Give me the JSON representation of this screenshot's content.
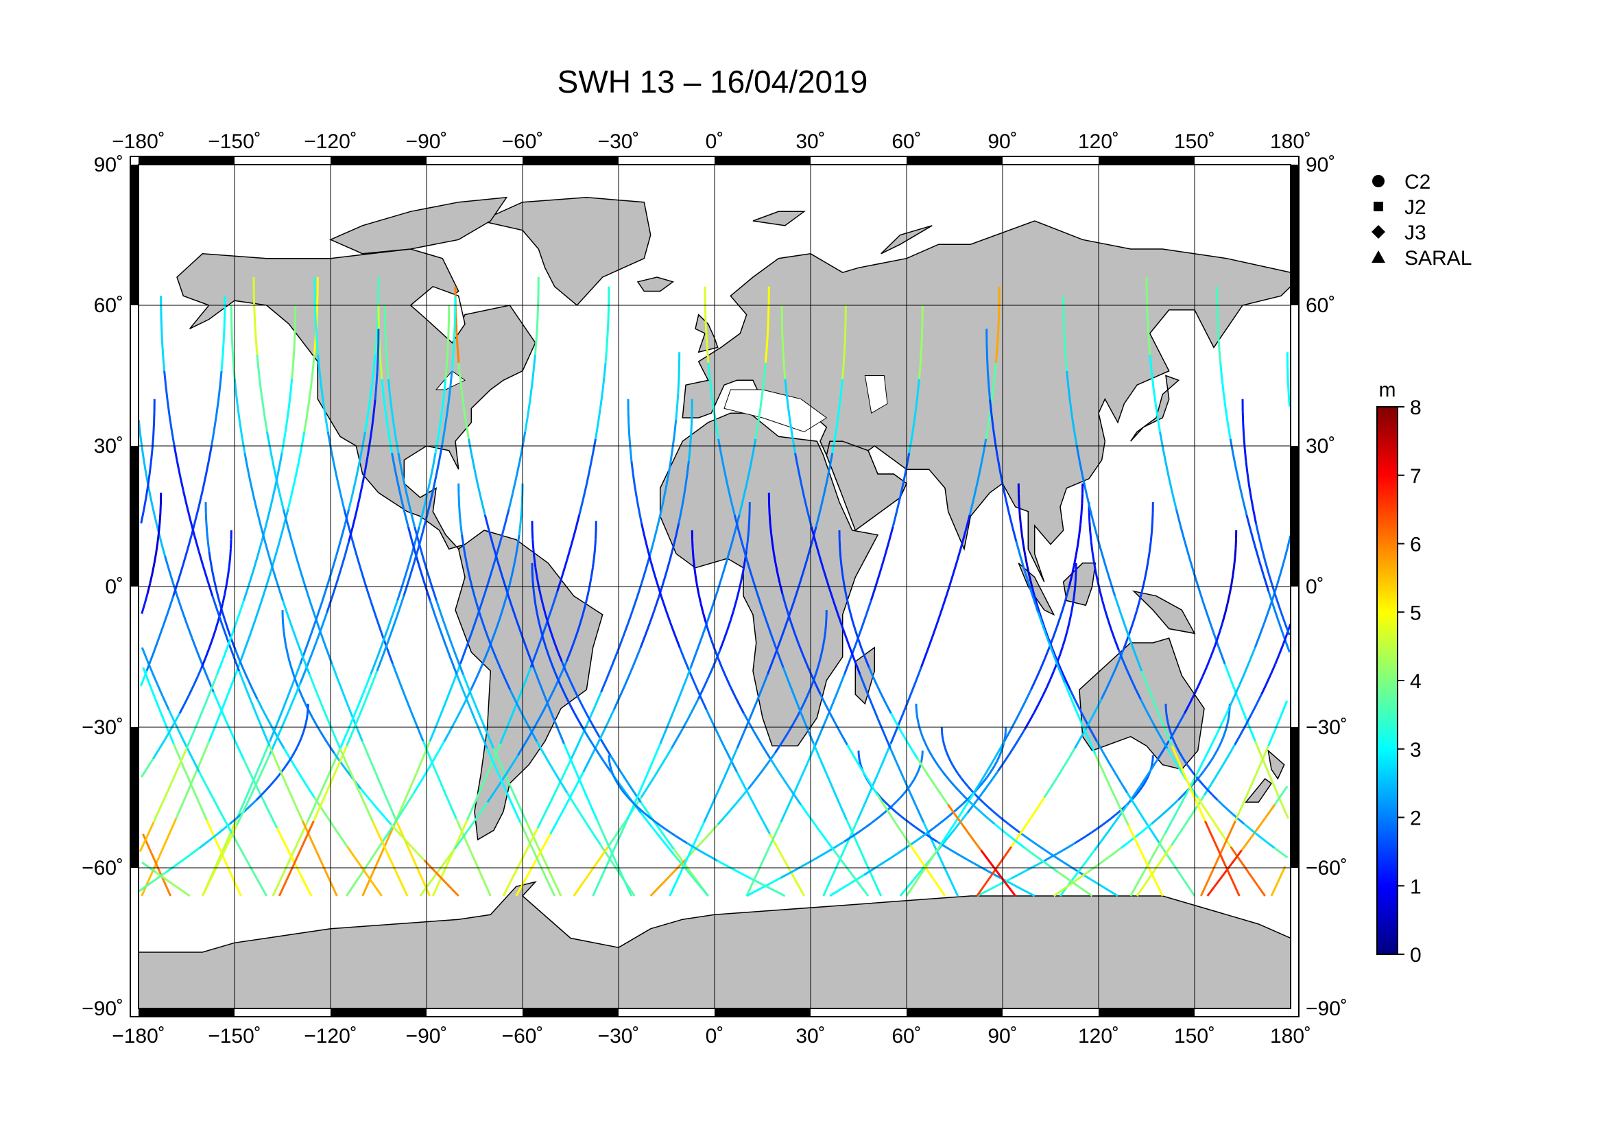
{
  "title": "SWH 13 – 16/04/2019",
  "map": {
    "projection": "equirectangular",
    "lon_range": [
      -180,
      180
    ],
    "lat_range": [
      -90,
      90
    ],
    "lon_ticks": [
      -180,
      -150,
      -120,
      -90,
      -60,
      -30,
      0,
      30,
      60,
      90,
      120,
      150,
      180
    ],
    "lat_ticks": [
      90,
      60,
      30,
      0,
      -30,
      -60,
      -90
    ],
    "lon_tick_labels": [
      "−180˚",
      "−150˚",
      "−120˚",
      "−90˚",
      "−60˚",
      "−30˚",
      "0˚",
      "30˚",
      "60˚",
      "90˚",
      "120˚",
      "150˚",
      "180˚"
    ],
    "lat_tick_labels": [
      "90˚",
      "60˚",
      "30˚",
      "0˚",
      "−30˚",
      "−60˚",
      "−90˚"
    ],
    "grid": true,
    "land_color": "#bebebe",
    "ocean_color": "#ffffff"
  },
  "legend": {
    "placement": "top-right",
    "items": [
      {
        "label": "C2",
        "symbol": "circle"
      },
      {
        "label": "J2",
        "symbol": "square"
      },
      {
        "label": "J3",
        "symbol": "diamond"
      },
      {
        "label": "SARAL",
        "symbol": "triangle"
      }
    ]
  },
  "colorbar": {
    "unit": "m",
    "min": 0,
    "max": 8,
    "ticks": [
      8,
      7,
      6,
      5,
      4,
      3,
      2,
      1,
      0
    ],
    "colormap": "jet"
  },
  "chart_data": {
    "type": "scatter",
    "title": "SWH 13 – 16/04/2019",
    "variable": "significant wave height",
    "unit": "m",
    "xlim": [
      -180,
      180
    ],
    "ylim": [
      -90,
      90
    ],
    "satellites": [
      "C2",
      "J2",
      "J3",
      "SARAL"
    ],
    "value_range": [
      0,
      8
    ],
    "tracks": [
      {
        "lon0": -179,
        "lat_start": -66,
        "lat_end": 66,
        "dir": 1,
        "wave": [
          5.5,
          4,
          3,
          2.5,
          2.5,
          3,
          4,
          5
        ]
      },
      {
        "lon0": -170,
        "lat_start": -66,
        "lat_end": 66,
        "dir": -1,
        "wave": [
          6,
          4.5,
          3,
          2,
          2,
          2.5,
          3,
          4
        ]
      },
      {
        "lon0": -160,
        "lat_start": -66,
        "lat_end": 66,
        "dir": 1,
        "wave": [
          4.5,
          3.5,
          2.5,
          2,
          2,
          2.5,
          3,
          3.5
        ]
      },
      {
        "lon0": -148,
        "lat_start": -66,
        "lat_end": 64,
        "dir": -1,
        "wave": [
          5,
          4,
          3,
          2,
          1.5,
          2,
          3,
          3.5
        ]
      },
      {
        "lon0": -138,
        "lat_start": -66,
        "lat_end": 60,
        "dir": 1,
        "wave": [
          4.5,
          4,
          3,
          2.5,
          2,
          2.5,
          3,
          4
        ]
      },
      {
        "lon0": -126,
        "lat_start": -66,
        "lat_end": 50,
        "dir": -1,
        "wave": [
          5,
          3.5,
          3,
          2,
          2,
          2.5,
          2.5,
          3
        ]
      },
      {
        "lon0": -115,
        "lat_start": -66,
        "lat_end": 22,
        "dir": 1,
        "wave": [
          4,
          3.5,
          3,
          2.5,
          2,
          2,
          2,
          2.5
        ]
      },
      {
        "lon0": -104,
        "lat_start": -66,
        "lat_end": 18,
        "dir": -1,
        "wave": [
          5.5,
          4,
          3,
          2.5,
          2,
          1.5,
          1.5,
          2
        ]
      },
      {
        "lon0": -92,
        "lat_start": -66,
        "lat_end": 14,
        "dir": 1,
        "wave": [
          4.5,
          3.5,
          2.5,
          2,
          2,
          1.5,
          1.5,
          1.5
        ]
      },
      {
        "lon0": -80,
        "lat_start": -66,
        "lat_end": -5,
        "dir": -1,
        "wave": [
          6,
          4.5,
          3,
          2.5,
          2,
          2,
          2,
          2
        ]
      },
      {
        "lon0": -62,
        "lat_start": -66,
        "lat_end": 40,
        "dir": 1,
        "wave": [
          5,
          3,
          2.5,
          2,
          1.5,
          1.5,
          2,
          2.5
        ]
      },
      {
        "lon0": -50,
        "lat_start": -66,
        "lat_end": 60,
        "dir": -1,
        "wave": [
          4,
          3,
          2.5,
          2,
          1.5,
          2,
          3,
          4.5
        ]
      },
      {
        "lon0": -38,
        "lat_start": -66,
        "lat_end": 64,
        "dir": 1,
        "wave": [
          3.5,
          3,
          2.5,
          2,
          2,
          2.5,
          3.5,
          5
        ]
      },
      {
        "lon0": -26,
        "lat_start": -66,
        "lat_end": 64,
        "dir": -1,
        "wave": [
          3.5,
          3,
          2,
          1.5,
          1.5,
          2.5,
          4,
          6
        ]
      },
      {
        "lon0": -14,
        "lat_start": -66,
        "lat_end": 60,
        "dir": 1,
        "wave": [
          3,
          2.5,
          2,
          1.5,
          1.5,
          2,
          3,
          4.5
        ]
      },
      {
        "lon0": -2,
        "lat_start": -66,
        "lat_end": 5,
        "dir": -1,
        "wave": [
          3.5,
          3,
          2.5,
          2,
          1.5,
          1.5,
          1.5,
          1.5
        ]
      },
      {
        "lon0": 10,
        "lat_start": -66,
        "lat_end": -35,
        "dir": 1,
        "wave": [
          3,
          2.5,
          2.5,
          2,
          2,
          2,
          2,
          2
        ]
      },
      {
        "lon0": 22,
        "lat_start": -66,
        "lat_end": -36,
        "dir": -1,
        "wave": [
          3.5,
          3,
          2.5,
          2,
          2,
          2,
          2,
          2
        ]
      },
      {
        "lon0": 36,
        "lat_start": -66,
        "lat_end": -30,
        "dir": 1,
        "wave": [
          3,
          2.5,
          2.5,
          2,
          2,
          2,
          2,
          2
        ]
      },
      {
        "lon0": 48,
        "lat_start": -66,
        "lat_end": 12,
        "dir": -1,
        "wave": [
          3.5,
          3,
          2.5,
          2,
          1.5,
          1.5,
          1,
          1
        ]
      },
      {
        "lon0": 60,
        "lat_start": -66,
        "lat_end": 22,
        "dir": 1,
        "wave": [
          4,
          3,
          2.5,
          2,
          1.5,
          1.5,
          1,
          1
        ]
      },
      {
        "lon0": 72,
        "lat_start": -66,
        "lat_end": 20,
        "dir": -1,
        "wave": [
          5,
          4,
          3,
          2,
          1.5,
          1.5,
          1,
          1
        ]
      },
      {
        "lon0": 82,
        "lat_start": -66,
        "lat_end": 18,
        "dir": 1,
        "wave": [
          6.5,
          5,
          3.5,
          2.5,
          2,
          1.5,
          1.5,
          1.5
        ]
      },
      {
        "lon0": 94,
        "lat_start": -66,
        "lat_end": 12,
        "dir": -1,
        "wave": [
          7,
          6,
          4,
          3,
          2,
          1.5,
          1.5,
          1.5
        ]
      },
      {
        "lon0": 106,
        "lat_start": -66,
        "lat_end": -25,
        "dir": 1,
        "wave": [
          4.5,
          4,
          3,
          2.5,
          2,
          2,
          2,
          2
        ]
      },
      {
        "lon0": 118,
        "lat_start": -66,
        "lat_end": -25,
        "dir": -1,
        "wave": [
          4,
          3.5,
          3,
          2.5,
          2,
          2,
          2,
          2
        ]
      },
      {
        "lon0": 130,
        "lat_start": -66,
        "lat_end": 40,
        "dir": 1,
        "wave": [
          4,
          3.5,
          3,
          2.5,
          2,
          2,
          1.5,
          1.5
        ]
      },
      {
        "lon0": 140,
        "lat_start": -66,
        "lat_end": 55,
        "dir": -1,
        "wave": [
          5,
          4,
          3,
          2.5,
          2,
          1.5,
          1.5,
          2
        ]
      },
      {
        "lon0": 152,
        "lat_start": -66,
        "lat_end": 62,
        "dir": 1,
        "wave": [
          6,
          4.5,
          3,
          2,
          1.5,
          1.5,
          2,
          3
        ]
      },
      {
        "lon0": 164,
        "lat_start": -66,
        "lat_end": 62,
        "dir": -1,
        "wave": [
          6.5,
          5,
          3.5,
          2.5,
          2,
          2,
          2.5,
          3.5
        ]
      },
      {
        "lon0": 174,
        "lat_start": -66,
        "lat_end": 60,
        "dir": 1,
        "wave": [
          5.5,
          4.5,
          3.5,
          3,
          2.5,
          2.5,
          3,
          4
        ]
      }
    ]
  }
}
